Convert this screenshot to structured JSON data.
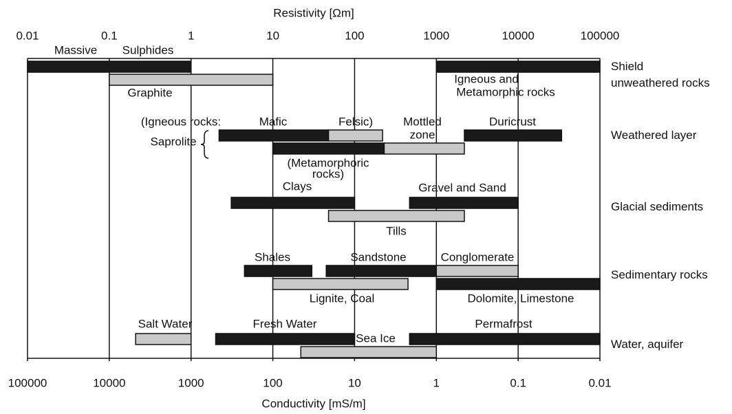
{
  "chart_data": {
    "type": "range",
    "xlabel": "Resistivity [Ωm]",
    "x2label": "Conductivity [mS/m]",
    "log_x": true,
    "xlim": [
      0.01,
      100000
    ],
    "xticks": [
      0.01,
      0.1,
      1,
      10,
      100,
      1000,
      10000,
      100000
    ],
    "x2lim": [
      100000,
      0.01
    ],
    "x2ticks": [
      100000,
      10000,
      1000,
      100,
      10,
      1,
      0.1,
      0.01
    ],
    "grid": true,
    "rows": [
      {
        "category": "Shield\nunweathered rocks",
        "bars": [
          {
            "color": "#1a1a1a",
            "values": [
              0.01,
              1
            ]
          },
          {
            "color": "#1a1a1a",
            "values": [
              1000,
              100000
            ]
          },
          {
            "color": "#c8c8c8",
            "values": [
              0.1,
              10
            ]
          }
        ]
      },
      {
        "category": "Weathered layer",
        "bars": [
          {
            "color": "#1a1a1a",
            "values": [
              2.2,
              48
            ]
          },
          {
            "color": "#c8c8c8",
            "values": [
              48,
              220
            ]
          },
          {
            "color": "#1a1a1a",
            "values": [
              2200,
              34000
            ]
          },
          {
            "color": "#1a1a1a",
            "values": [
              10,
              230
            ]
          },
          {
            "color": "#c8c8c8",
            "values": [
              230,
              2200
            ]
          }
        ]
      },
      {
        "category": "Glacial sediments",
        "bars": [
          {
            "color": "#1a1a1a",
            "values": [
              3.1,
              100
            ]
          },
          {
            "color": "#1a1a1a",
            "values": [
              470,
              10000
            ]
          },
          {
            "color": "#c8c8c8",
            "values": [
              48,
              2200
            ]
          }
        ]
      },
      {
        "category": "Sedimentary rocks",
        "bars": [
          {
            "color": "#1a1a1a",
            "values": [
              4.5,
              30
            ]
          },
          {
            "color": "#1a1a1a",
            "values": [
              45,
              1000
            ]
          },
          {
            "color": "#c8c8c8",
            "values": [
              1000,
              10000
            ]
          },
          {
            "color": "#c8c8c8",
            "values": [
              10,
              450
            ]
          },
          {
            "color": "#1a1a1a",
            "values": [
              1000,
              100000
            ]
          }
        ]
      },
      {
        "category": "Water, aquifer",
        "bars": [
          {
            "color": "#c8c8c8",
            "values": [
              0.21,
              1
            ]
          },
          {
            "color": "#1a1a1a",
            "values": [
              2,
              100
            ]
          },
          {
            "color": "#1a1a1a",
            "values": [
              470,
              100000
            ]
          },
          {
            "color": "#c8c8c8",
            "values": [
              22,
              1000
            ]
          }
        ]
      }
    ],
    "annotations": [
      "Massive",
      "Sulphides",
      "Graphite",
      "Igneous and",
      "Metamorphic rocks",
      "(Igneous rocks:",
      "Mafic",
      "Felsic)",
      "Mottled",
      "zone",
      "Duricrust",
      "Saprolite",
      "(Metamorphoric",
      "rocks)",
      "Clays",
      "Gravel and Sand",
      "Tills",
      "Shales",
      "Sandstone",
      "Conglomerate",
      "Lignite, Coal",
      "Dolomite, Limestone",
      "Salt Water",
      "Fresh Water",
      "Sea Ice",
      "Permafrost"
    ]
  }
}
